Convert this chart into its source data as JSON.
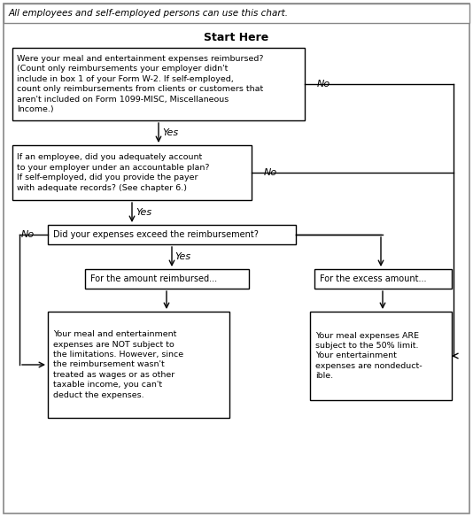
{
  "title_text": "All employees and self-employed persons can use this chart.",
  "start_label": "Start Here",
  "box1_text": "Were your meal and entertainment expenses reimbursed?\n(Count only reimbursements your employer didn't\ninclude in box 1 of your Form W-2. If self-employed,\ncount only reimbursements from clients or customers that\naren't included on Form 1099-MISC, Miscellaneous\nIncome.)",
  "box2_text": "If an employee, did you adequately account\nto your employer under an accountable plan?\nIf self-employed, did you provide the payer\nwith adequate records? (See chapter 6.)",
  "box3_text": "Did your expenses exceed the reimbursement?",
  "box4_text": "For the amount reimbursed...",
  "box5_text": "For the excess amount...",
  "box6_text": "Your meal and entertainment\nexpenses are NOT subject to\nthe limitations. However, since\nthe reimbursement wasn't\ntreated as wages or as other\ntaxable income, you can't\ndeduct the expenses.",
  "box7_text": "Your meal expenses ARE\nsubject to the 50% limit.\nYour entertainment\nexpenses are nondeduct-\nible.",
  "bg_color": "#ffffff",
  "box_edge_color": "#000000",
  "text_color": "#000000",
  "arrow_color": "#000000",
  "outer_border_color": "#000000"
}
